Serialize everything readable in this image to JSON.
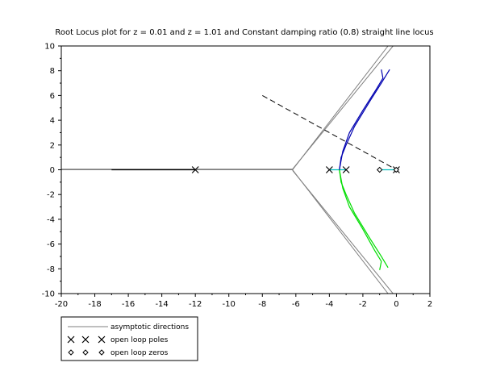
{
  "chart_data": {
    "type": "line",
    "title": "Root Locus plot for z = 0.01 and z = 1.01 and Constant damping ratio (0.8) straight line locus",
    "xlabel": "",
    "ylabel": "",
    "xlim": [
      -20,
      2
    ],
    "ylim": [
      -10,
      10
    ],
    "xticks": [
      -20,
      -18,
      -16,
      -14,
      -12,
      -10,
      -8,
      -6,
      -4,
      -2,
      0,
      2
    ],
    "yticks": [
      -10,
      -8,
      -6,
      -4,
      -2,
      0,
      2,
      4,
      6,
      8,
      10
    ],
    "grid": false,
    "legend_position": "bottom-left, outside plot",
    "legend": [
      {
        "label": "asymptotic directions",
        "marker": "line",
        "color": "#7f7f7f"
      },
      {
        "label": "open loop poles",
        "marker": "x",
        "color": "#000000"
      },
      {
        "label": "open loop zeros",
        "marker": "diamond",
        "color": "#000000"
      }
    ],
    "series": [
      {
        "role": "asymptote",
        "color": "#7f7f7f",
        "points": [
          [
            -20,
            0
          ],
          [
            -6.2,
            0
          ],
          [
            -0.5,
            10
          ]
        ]
      },
      {
        "role": "asymptote",
        "color": "#7f7f7f",
        "points": [
          [
            -20,
            0.05
          ],
          [
            -6.2,
            0.05
          ],
          [
            -0.2,
            10
          ]
        ]
      },
      {
        "role": "asymptote",
        "color": "#7f7f7f",
        "points": [
          [
            -6.2,
            0
          ],
          [
            -0.5,
            -10
          ]
        ]
      },
      {
        "role": "asymptote",
        "color": "#7f7f7f",
        "points": [
          [
            -6.2,
            -0.05
          ],
          [
            -0.2,
            -10
          ]
        ]
      },
      {
        "role": "locus",
        "color": "#000000",
        "points": [
          [
            -17,
            0
          ],
          [
            -12,
            0
          ]
        ]
      },
      {
        "role": "locus",
        "color": "#00bfbf",
        "points": [
          [
            -1,
            0
          ],
          [
            0,
            0
          ]
        ]
      },
      {
        "role": "locus",
        "color": "#00bfbf",
        "points": [
          [
            -4,
            0
          ],
          [
            -3,
            0
          ]
        ]
      },
      {
        "role": "locus",
        "color": "#0000b0",
        "points": [
          [
            -3.4,
            0
          ],
          [
            -3.3,
            1
          ],
          [
            -3.0,
            2
          ],
          [
            -2.5,
            3.5
          ],
          [
            -1.6,
            5.5
          ],
          [
            -0.9,
            7
          ],
          [
            -0.4,
            8.1
          ]
        ]
      },
      {
        "role": "locus",
        "color": "#0000b0",
        "points": [
          [
            -3.4,
            0
          ],
          [
            -3.2,
            1.5
          ],
          [
            -2.8,
            3
          ],
          [
            -2.0,
            4.8
          ],
          [
            -1.2,
            6.5
          ],
          [
            -0.8,
            7.4
          ],
          [
            -0.9,
            8.1
          ]
        ]
      },
      {
        "role": "locus",
        "color": "#00dd00",
        "points": [
          [
            -3.4,
            0
          ],
          [
            -3.3,
            -1
          ],
          [
            -3.0,
            -2
          ],
          [
            -2.5,
            -3.5
          ],
          [
            -1.6,
            -5.5
          ],
          [
            -0.9,
            -7
          ],
          [
            -0.5,
            -7.9
          ]
        ]
      },
      {
        "role": "locus",
        "color": "#00dd00",
        "points": [
          [
            -3.4,
            0
          ],
          [
            -3.2,
            -1.5
          ],
          [
            -2.8,
            -3
          ],
          [
            -2.0,
            -4.8
          ],
          [
            -1.3,
            -6.5
          ],
          [
            -0.9,
            -7.4
          ],
          [
            -1.0,
            -8.1
          ]
        ]
      },
      {
        "role": "damping-line",
        "color": "#000000",
        "dashed": true,
        "points": [
          [
            -8,
            6
          ],
          [
            0,
            0
          ]
        ]
      }
    ],
    "poles": [
      [
        -12,
        0
      ],
      [
        -4,
        0
      ],
      [
        -3,
        0
      ],
      [
        0,
        0
      ]
    ],
    "zeros": [
      [
        -1,
        0
      ],
      [
        -0.01,
        0
      ]
    ]
  }
}
